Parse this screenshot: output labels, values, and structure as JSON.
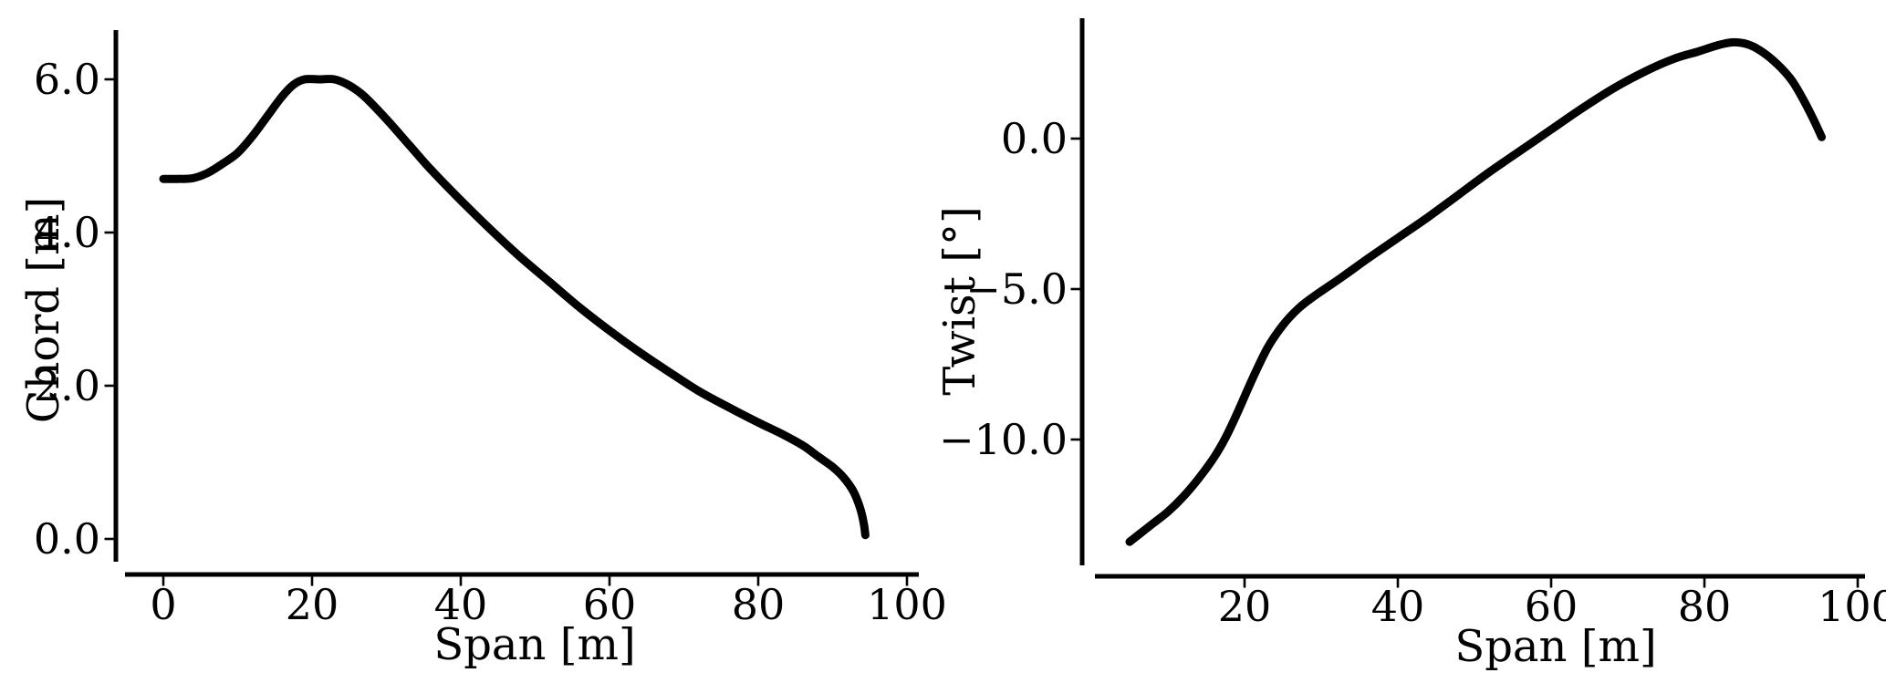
{
  "page": {
    "background_color": "#ffffff",
    "foreground_color": "#000000"
  },
  "chart_data": [
    {
      "id": "chord",
      "type": "line",
      "title": "",
      "xlabel": "Span [m]",
      "ylabel": "Chord [m]",
      "grid": false,
      "legend": "none",
      "line_color": "#000000",
      "xlim": [
        0,
        100
      ],
      "ylim": [
        0.0,
        6.0
      ],
      "xticks": {
        "values": [
          0,
          20,
          40,
          60,
          80,
          100
        ],
        "labels": [
          "0",
          "20",
          "40",
          "60",
          "80",
          "100"
        ]
      },
      "yticks": {
        "values": [
          0,
          2,
          4,
          6
        ],
        "labels": [
          "0.0",
          "2.0",
          "4.0",
          "6.0"
        ]
      },
      "series": [
        {
          "name": "Chord [m]",
          "points": [
            [
              0,
              4.7
            ],
            [
              2,
              4.7
            ],
            [
              4,
              4.71
            ],
            [
              6,
              4.78
            ],
            [
              8,
              4.9
            ],
            [
              10,
              5.04
            ],
            [
              12,
              5.26
            ],
            [
              14,
              5.52
            ],
            [
              16,
              5.78
            ],
            [
              17.5,
              5.93
            ],
            [
              19,
              6.0
            ],
            [
              21,
              6.0
            ],
            [
              23,
              6.0
            ],
            [
              25,
              5.92
            ],
            [
              27,
              5.78
            ],
            [
              30,
              5.48
            ],
            [
              33,
              5.15
            ],
            [
              36,
              4.82
            ],
            [
              40,
              4.42
            ],
            [
              44,
              4.04
            ],
            [
              48,
              3.68
            ],
            [
              52,
              3.35
            ],
            [
              56,
              3.02
            ],
            [
              60,
              2.72
            ],
            [
              64,
              2.44
            ],
            [
              68,
              2.18
            ],
            [
              72,
              1.93
            ],
            [
              76,
              1.72
            ],
            [
              80,
              1.52
            ],
            [
              83,
              1.38
            ],
            [
              86,
              1.22
            ],
            [
              88,
              1.08
            ],
            [
              90,
              0.94
            ],
            [
              91.5,
              0.8
            ],
            [
              92.8,
              0.62
            ],
            [
              93.7,
              0.4
            ],
            [
              94.2,
              0.2
            ],
            [
              94.4,
              0.05
            ]
          ]
        }
      ]
    },
    {
      "id": "twist",
      "type": "line",
      "title": "",
      "xlabel": "Span [m]",
      "ylabel": "Twist [°]",
      "grid": false,
      "legend": "none",
      "line_color": "#000000",
      "xlim": [
        5,
        100
      ],
      "ylim": [
        -13.5,
        3.3
      ],
      "xticks": {
        "values": [
          20,
          40,
          60,
          80,
          100
        ],
        "labels": [
          "20",
          "40",
          "60",
          "80",
          "100"
        ]
      },
      "yticks": {
        "values": [
          -10,
          -5,
          0
        ],
        "labels": [
          "−10.0",
          "−5.0",
          "0.0"
        ]
      },
      "series": [
        {
          "name": "Twist [°]",
          "points": [
            [
              5,
              -13.4
            ],
            [
              6.5,
              -13.1
            ],
            [
              8,
              -12.8
            ],
            [
              10,
              -12.4
            ],
            [
              12,
              -11.9
            ],
            [
              14,
              -11.3
            ],
            [
              16,
              -10.6
            ],
            [
              17.5,
              -9.95
            ],
            [
              19,
              -9.15
            ],
            [
              21,
              -8.0
            ],
            [
              23,
              -6.95
            ],
            [
              25,
              -6.2
            ],
            [
              27,
              -5.65
            ],
            [
              29,
              -5.25
            ],
            [
              31,
              -4.9
            ],
            [
              33,
              -4.55
            ],
            [
              36,
              -4.0
            ],
            [
              40,
              -3.3
            ],
            [
              44,
              -2.6
            ],
            [
              48,
              -1.85
            ],
            [
              52,
              -1.1
            ],
            [
              56,
              -0.4
            ],
            [
              60,
              0.3
            ],
            [
              64,
              1.0
            ],
            [
              68,
              1.65
            ],
            [
              72,
              2.2
            ],
            [
              76,
              2.65
            ],
            [
              79,
              2.88
            ],
            [
              82,
              3.12
            ],
            [
              84,
              3.2
            ],
            [
              86,
              3.1
            ],
            [
              88,
              2.8
            ],
            [
              90,
              2.35
            ],
            [
              91.5,
              1.9
            ],
            [
              93,
              1.25
            ],
            [
              94.3,
              0.6
            ],
            [
              95.3,
              0.05
            ]
          ]
        }
      ]
    }
  ]
}
